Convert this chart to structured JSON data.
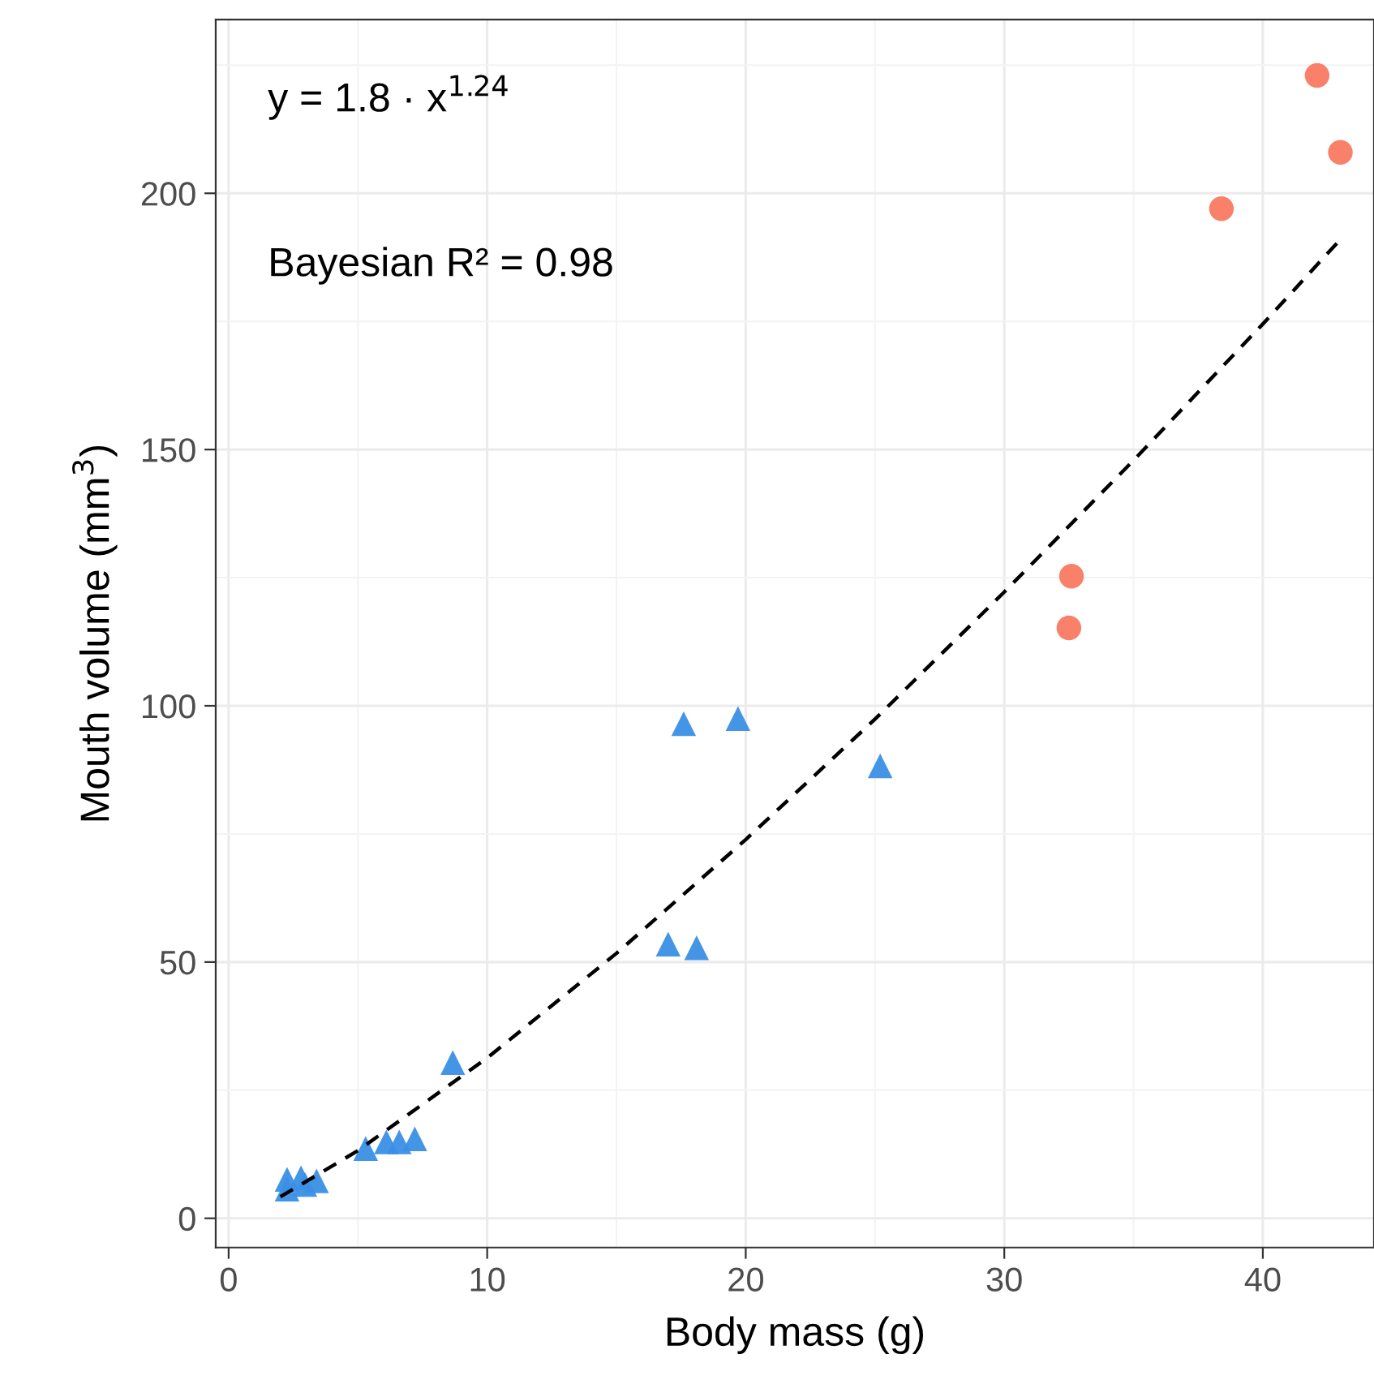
{
  "chart_data": {
    "type": "scatter",
    "xlabel": "Body mass (g)",
    "ylabel": "Mouth volume (mm$^{3}$)",
    "annotations": [
      "y = 1.8 · x$^{1.24}$",
      "Bayesian R² = 0.98"
    ],
    "xlim": [
      -0.5,
      44.3
    ],
    "ylim": [
      -5.7,
      233.9
    ],
    "xticks": [
      0,
      10,
      20,
      30,
      40
    ],
    "yticks": [
      0,
      50,
      100,
      150,
      200
    ],
    "grid": true,
    "legend": false,
    "series": [
      {
        "marker": "triangle",
        "color": "#3b8fe6",
        "x": [
          2.26,
          2.8,
          3.4,
          2.26,
          2.95,
          5.3,
          6.1,
          6.6,
          7.2,
          8.67,
          17.0,
          18.1,
          17.6,
          19.7,
          25.2
        ],
        "values": [
          7.6,
          7.9,
          7.3,
          5.7,
          6.6,
          13.6,
          14.9,
          14.9,
          15.5,
          30.4,
          53.5,
          52.8,
          96.5,
          97.5,
          88.3
        ]
      },
      {
        "marker": "circle",
        "color": "#f97a62",
        "x": [
          42.1,
          43.0,
          38.4,
          32.6,
          32.5
        ],
        "values": [
          223,
          208,
          197,
          125.3,
          115.2
        ]
      },
      {
        "type": "line",
        "line_style": "dashed",
        "color": "#000000",
        "x": [
          2,
          5,
          10,
          15,
          20,
          25,
          30,
          35,
          40,
          43
        ],
        "values": [
          4.2,
          13.2,
          31.3,
          51.7,
          73.9,
          97.4,
          122.2,
          147.9,
          174.5,
          191
        ]
      }
    ]
  }
}
